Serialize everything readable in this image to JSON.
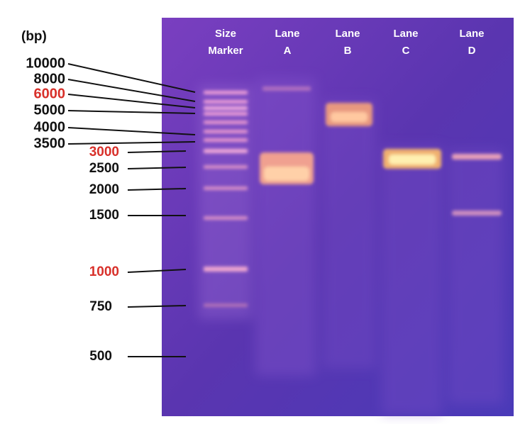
{
  "unit": "(bp)",
  "markers": [
    {
      "label": "10000",
      "highlight": false
    },
    {
      "label": "8000",
      "highlight": false
    },
    {
      "label": "6000",
      "highlight": true
    },
    {
      "label": "5000",
      "highlight": false
    },
    {
      "label": "4000",
      "highlight": false
    },
    {
      "label": "3500",
      "highlight": false
    },
    {
      "label": "3000",
      "highlight": true
    },
    {
      "label": "2500",
      "highlight": false
    },
    {
      "label": "2000",
      "highlight": false
    },
    {
      "label": "1500",
      "highlight": false
    },
    {
      "label": "1000",
      "highlight": true
    },
    {
      "label": "750",
      "highlight": false
    },
    {
      "label": "500",
      "highlight": false
    }
  ],
  "lanes": [
    [
      "Size",
      "Marker"
    ],
    [
      "Lane",
      "A"
    ],
    [
      "Lane",
      "B"
    ],
    [
      "Lane",
      "C"
    ],
    [
      "Lane",
      "D"
    ]
  ]
}
